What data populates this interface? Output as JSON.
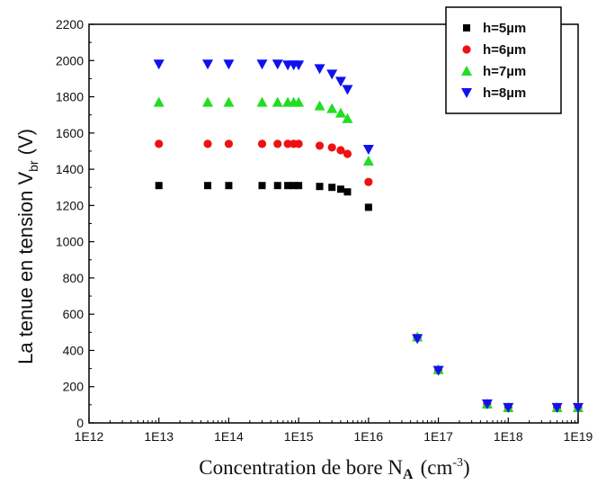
{
  "chart_data": {
    "type": "scatter",
    "title": "",
    "xlabel": "Concentration de bore N",
    "xlabel_sub": "A",
    "xlabel_unit": "(cm",
    "xlabel_unit_exp": "-3",
    "xlabel_unit_close": ")",
    "ylabel": "La tenue en tension V",
    "ylabel_sub": "br",
    "ylabel_unit": "(V)",
    "xscale": "log",
    "xlim": [
      1000000000000.0,
      1e+19
    ],
    "ylim": [
      0,
      2200
    ],
    "xticks": [
      {
        "value": 1000000000000.0,
        "label": "1E12"
      },
      {
        "value": 10000000000000.0,
        "label": "1E13"
      },
      {
        "value": 100000000000000.0,
        "label": "1E14"
      },
      {
        "value": 1000000000000000.0,
        "label": "1E15"
      },
      {
        "value": 1e+16,
        "label": "1E16"
      },
      {
        "value": 1e+17,
        "label": "1E17"
      },
      {
        "value": 1e+18,
        "label": "1E18"
      },
      {
        "value": 1e+19,
        "label": "1E19"
      }
    ],
    "yticks": [
      {
        "value": 0,
        "label": "0"
      },
      {
        "value": 200,
        "label": "200"
      },
      {
        "value": 400,
        "label": "400"
      },
      {
        "value": 600,
        "label": "600"
      },
      {
        "value": 800,
        "label": "800"
      },
      {
        "value": 1000,
        "label": "1000"
      },
      {
        "value": 1200,
        "label": "1200"
      },
      {
        "value": 1400,
        "label": "1400"
      },
      {
        "value": 1600,
        "label": "1600"
      },
      {
        "value": 1800,
        "label": "1800"
      },
      {
        "value": 2000,
        "label": "2000"
      },
      {
        "value": 2200,
        "label": "2200"
      }
    ],
    "grid": false,
    "legend_position": "top-right",
    "series": [
      {
        "name": "h=5µm",
        "marker": "square",
        "color": "#000000",
        "x": [
          10000000000000.0,
          50000000000000.0,
          100000000000000.0,
          300000000000000.0,
          500000000000000.0,
          700000000000000.0,
          850000000000000.0,
          1000000000000000.0,
          2000000000000000.0,
          3000000000000000.0,
          4000000000000000.0,
          5000000000000000.0,
          1e+16,
          5e+16,
          1e+17,
          5e+17,
          1e+18,
          5e+18,
          1e+19
        ],
        "y": [
          1310,
          1310,
          1310,
          1310,
          1310,
          1310,
          1310,
          1310,
          1305,
          1300,
          1290,
          1275,
          1190,
          470,
          290,
          100,
          80,
          80,
          80
        ]
      },
      {
        "name": "h=6µm",
        "marker": "circle",
        "color": "#ee1111",
        "x": [
          10000000000000.0,
          50000000000000.0,
          100000000000000.0,
          300000000000000.0,
          500000000000000.0,
          700000000000000.0,
          850000000000000.0,
          1000000000000000.0,
          2000000000000000.0,
          3000000000000000.0,
          4000000000000000.0,
          5000000000000000.0,
          1e+16,
          5e+16,
          1e+17,
          5e+17,
          1e+18,
          5e+18,
          1e+19
        ],
        "y": [
          1540,
          1540,
          1540,
          1540,
          1540,
          1540,
          1540,
          1540,
          1530,
          1520,
          1505,
          1485,
          1330,
          470,
          290,
          105,
          85,
          85,
          85
        ]
      },
      {
        "name": "h=7µm",
        "marker": "triangle-up",
        "color": "#22dd22",
        "x": [
          10000000000000.0,
          50000000000000.0,
          100000000000000.0,
          300000000000000.0,
          500000000000000.0,
          700000000000000.0,
          850000000000000.0,
          1000000000000000.0,
          2000000000000000.0,
          3000000000000000.0,
          4000000000000000.0,
          5000000000000000.0,
          1e+16,
          5e+16,
          1e+17,
          5e+17,
          1e+18,
          5e+18,
          1e+19
        ],
        "y": [
          1770,
          1770,
          1770,
          1770,
          1770,
          1770,
          1770,
          1770,
          1750,
          1735,
          1710,
          1680,
          1445,
          475,
          295,
          105,
          85,
          85,
          85
        ]
      },
      {
        "name": "h=8µm",
        "marker": "triangle-down",
        "color": "#1111ee",
        "x": [
          10000000000000.0,
          50000000000000.0,
          100000000000000.0,
          300000000000000.0,
          500000000000000.0,
          700000000000000.0,
          850000000000000.0,
          1000000000000000.0,
          2000000000000000.0,
          3000000000000000.0,
          4000000000000000.0,
          5000000000000000.0,
          1e+16,
          5e+16,
          1e+17,
          5e+17,
          1e+18,
          5e+18,
          1e+19
        ],
        "y": [
          1980,
          1980,
          1980,
          1980,
          1980,
          1975,
          1975,
          1975,
          1955,
          1925,
          1885,
          1840,
          1510,
          465,
          290,
          105,
          85,
          85,
          85
        ]
      }
    ]
  }
}
